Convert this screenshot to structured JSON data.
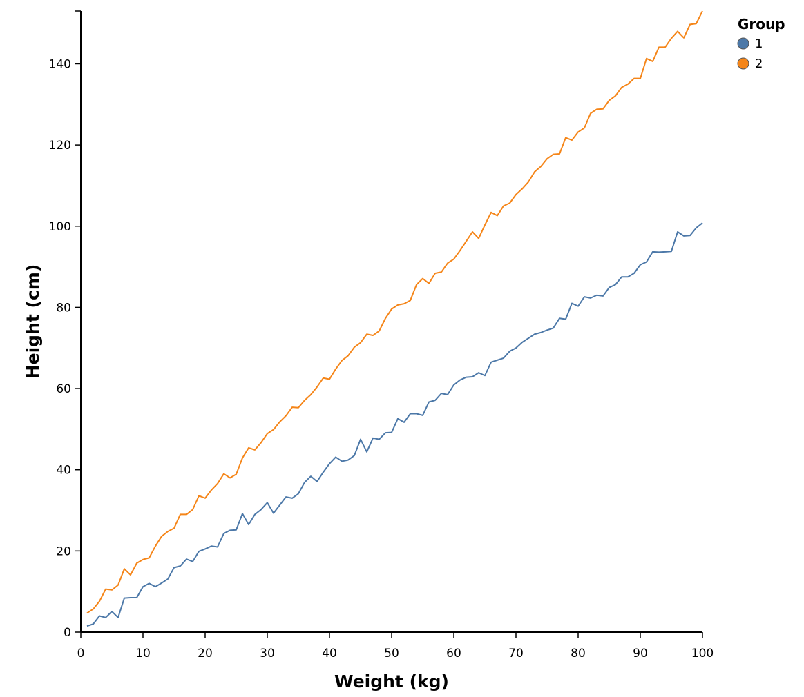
{
  "chart_data": {
    "type": "line",
    "xlabel": "Weight (kg)",
    "ylabel": "Height (cm)",
    "xlim": [
      0,
      100
    ],
    "ylim": [
      0,
      153
    ],
    "x_ticks": [
      "0",
      "10",
      "20",
      "30",
      "40",
      "50",
      "60",
      "70",
      "80",
      "90",
      "100"
    ],
    "y_ticks": [
      "0",
      "20",
      "40",
      "60",
      "80",
      "100",
      "120",
      "140"
    ],
    "grid": false,
    "legend": {
      "title": "Group",
      "position": "top-right"
    },
    "x": [
      1,
      2,
      3,
      4,
      5,
      6,
      7,
      8,
      9,
      10,
      11,
      12,
      13,
      14,
      15,
      16,
      17,
      18,
      19,
      20,
      21,
      22,
      23,
      24,
      25,
      26,
      27,
      28,
      29,
      30,
      31,
      32,
      33,
      34,
      35,
      36,
      37,
      38,
      39,
      40,
      41,
      42,
      43,
      44,
      45,
      46,
      47,
      48,
      49,
      50,
      51,
      52,
      53,
      54,
      55,
      56,
      57,
      58,
      59,
      60,
      61,
      62,
      63,
      64,
      65,
      66,
      67,
      68,
      69,
      70,
      71,
      72,
      73,
      74,
      75,
      76,
      77,
      78,
      79,
      80,
      81,
      82,
      83,
      84,
      85,
      86,
      87,
      88,
      89,
      90,
      91,
      92,
      93,
      94,
      95,
      96,
      97,
      98,
      99,
      100
    ],
    "series": [
      {
        "name": "1",
        "color": "#4c78a8",
        "values": [
          1.5,
          2.0,
          4.0,
          3.6,
          5.1,
          3.6,
          8.4,
          8.5,
          8.5,
          11.2,
          12.0,
          11.2,
          12.1,
          13.1,
          15.9,
          16.3,
          18.0,
          17.4,
          19.9,
          20.5,
          21.2,
          21.0,
          24.3,
          25.1,
          25.2,
          29.2,
          26.5,
          29.0,
          30.2,
          31.9,
          29.3,
          31.3,
          33.3,
          33.0,
          34.1,
          36.9,
          38.4,
          37.1,
          39.4,
          41.5,
          43.1,
          42.1,
          42.4,
          43.5,
          47.5,
          44.4,
          47.8,
          47.5,
          49.1,
          49.2,
          52.6,
          51.7,
          53.8,
          53.8,
          53.4,
          56.7,
          57.1,
          58.8,
          58.5,
          60.9,
          62.1,
          62.8,
          62.9,
          63.9,
          63.2,
          66.5,
          67.0,
          67.5,
          69.2,
          70.0,
          71.4,
          72.4,
          73.4,
          73.8,
          74.4,
          74.9,
          77.3,
          77.1,
          81.0,
          80.3,
          82.6,
          82.3,
          83.0,
          82.8,
          84.9,
          85.6,
          87.5,
          87.5,
          88.4,
          90.5,
          91.2,
          93.7,
          93.6,
          93.7,
          93.8,
          98.6,
          97.6,
          97.7,
          99.6,
          100.8
        ]
      },
      {
        "name": "2",
        "color": "#f58518",
        "values": [
          4.7,
          5.7,
          7.6,
          10.6,
          10.4,
          11.6,
          15.6,
          14.1,
          17.0,
          17.9,
          18.3,
          21.2,
          23.6,
          24.8,
          25.6,
          29.0,
          29.0,
          30.2,
          33.6,
          33.0,
          35.0,
          36.6,
          39.0,
          38.0,
          38.9,
          42.9,
          45.4,
          44.9,
          46.7,
          48.9,
          49.9,
          51.8,
          53.3,
          55.4,
          55.3,
          57.1,
          58.5,
          60.4,
          62.6,
          62.3,
          64.8,
          66.9,
          68.1,
          70.2,
          71.3,
          73.4,
          73.1,
          74.2,
          77.3,
          79.6,
          80.6,
          80.9,
          81.7,
          85.6,
          87.1,
          85.9,
          88.4,
          88.7,
          90.9,
          91.9,
          94.0,
          96.3,
          98.6,
          97.0,
          100.3,
          103.4,
          102.6,
          105.0,
          105.7,
          107.8,
          109.2,
          110.9,
          113.4,
          114.7,
          116.6,
          117.7,
          117.8,
          121.8,
          121.2,
          123.2,
          124.2,
          127.8,
          128.8,
          128.9,
          131.0,
          132.1,
          134.2,
          135.0,
          136.4,
          136.4,
          141.3,
          140.6,
          144.1,
          144.1,
          146.3,
          148.0,
          146.4,
          149.7,
          149.9,
          153.0
        ]
      }
    ]
  }
}
